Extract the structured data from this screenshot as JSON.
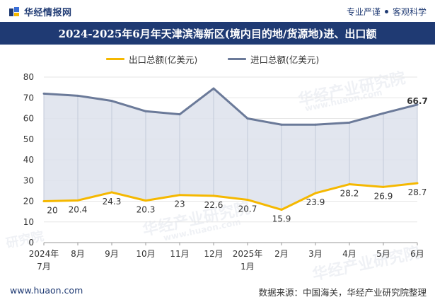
{
  "header": {
    "brand_name": "华经情报网",
    "tagline_left": "专业严谨",
    "tagline_right": "客观科学"
  },
  "watermark": {
    "text": "华经产业研究院",
    "url": "www.huaon.com",
    "short": "研究院"
  },
  "footer": {
    "url": "www.huaon.com",
    "source": "数据来源：中国海关，华经产业研究院整理"
  },
  "colors": {
    "brand_navy": "#1f3a73",
    "export_line": "#f5b800",
    "import_line": "#6b7a99",
    "fill": "#dde2ec"
  },
  "chart_data": {
    "type": "line",
    "title": "2024-2025年6月年天津滨海新区(境内目的地/货源地)进、出口额",
    "xlabel": "",
    "ylabel": "",
    "ylim": [
      0,
      80
    ],
    "yticks": [
      0,
      10,
      20,
      30,
      40,
      50,
      60,
      70,
      80
    ],
    "categories": [
      {
        "top": "2024年",
        "bottom": "7月"
      },
      {
        "top": "8月",
        "bottom": ""
      },
      {
        "top": "9月",
        "bottom": ""
      },
      {
        "top": "10月",
        "bottom": ""
      },
      {
        "top": "11月",
        "bottom": ""
      },
      {
        "top": "12月",
        "bottom": ""
      },
      {
        "top": "2025年",
        "bottom": "1月"
      },
      {
        "top": "2月",
        "bottom": ""
      },
      {
        "top": "3月",
        "bottom": ""
      },
      {
        "top": "4月",
        "bottom": ""
      },
      {
        "top": "5月",
        "bottom": ""
      },
      {
        "top": "6月",
        "bottom": ""
      }
    ],
    "legend_position": "top-center",
    "series": [
      {
        "name": "出口总额(亿美元)",
        "key": "export",
        "color": "#f5b800",
        "values": [
          20,
          20.4,
          24.3,
          20.3,
          23,
          22.6,
          20.7,
          15.9,
          23.9,
          28.2,
          26.9,
          28.7
        ],
        "labels": [
          "20",
          "20.4",
          "24.3",
          "20.3",
          "23",
          "22.6",
          "20.7",
          "15.9",
          "23.9",
          "28.2",
          "26.9",
          "28.7"
        ]
      },
      {
        "name": "进口总额(亿美元)",
        "key": "import",
        "color": "#6b7a99",
        "values": [
          72,
          71,
          68.5,
          63.5,
          62,
          74.5,
          60,
          57,
          57,
          58,
          62.5,
          66.7
        ],
        "labels": [
          "",
          "",
          "",
          "",
          "",
          "",
          "",
          "",
          "",
          "",
          "",
          "66.7"
        ]
      }
    ]
  }
}
